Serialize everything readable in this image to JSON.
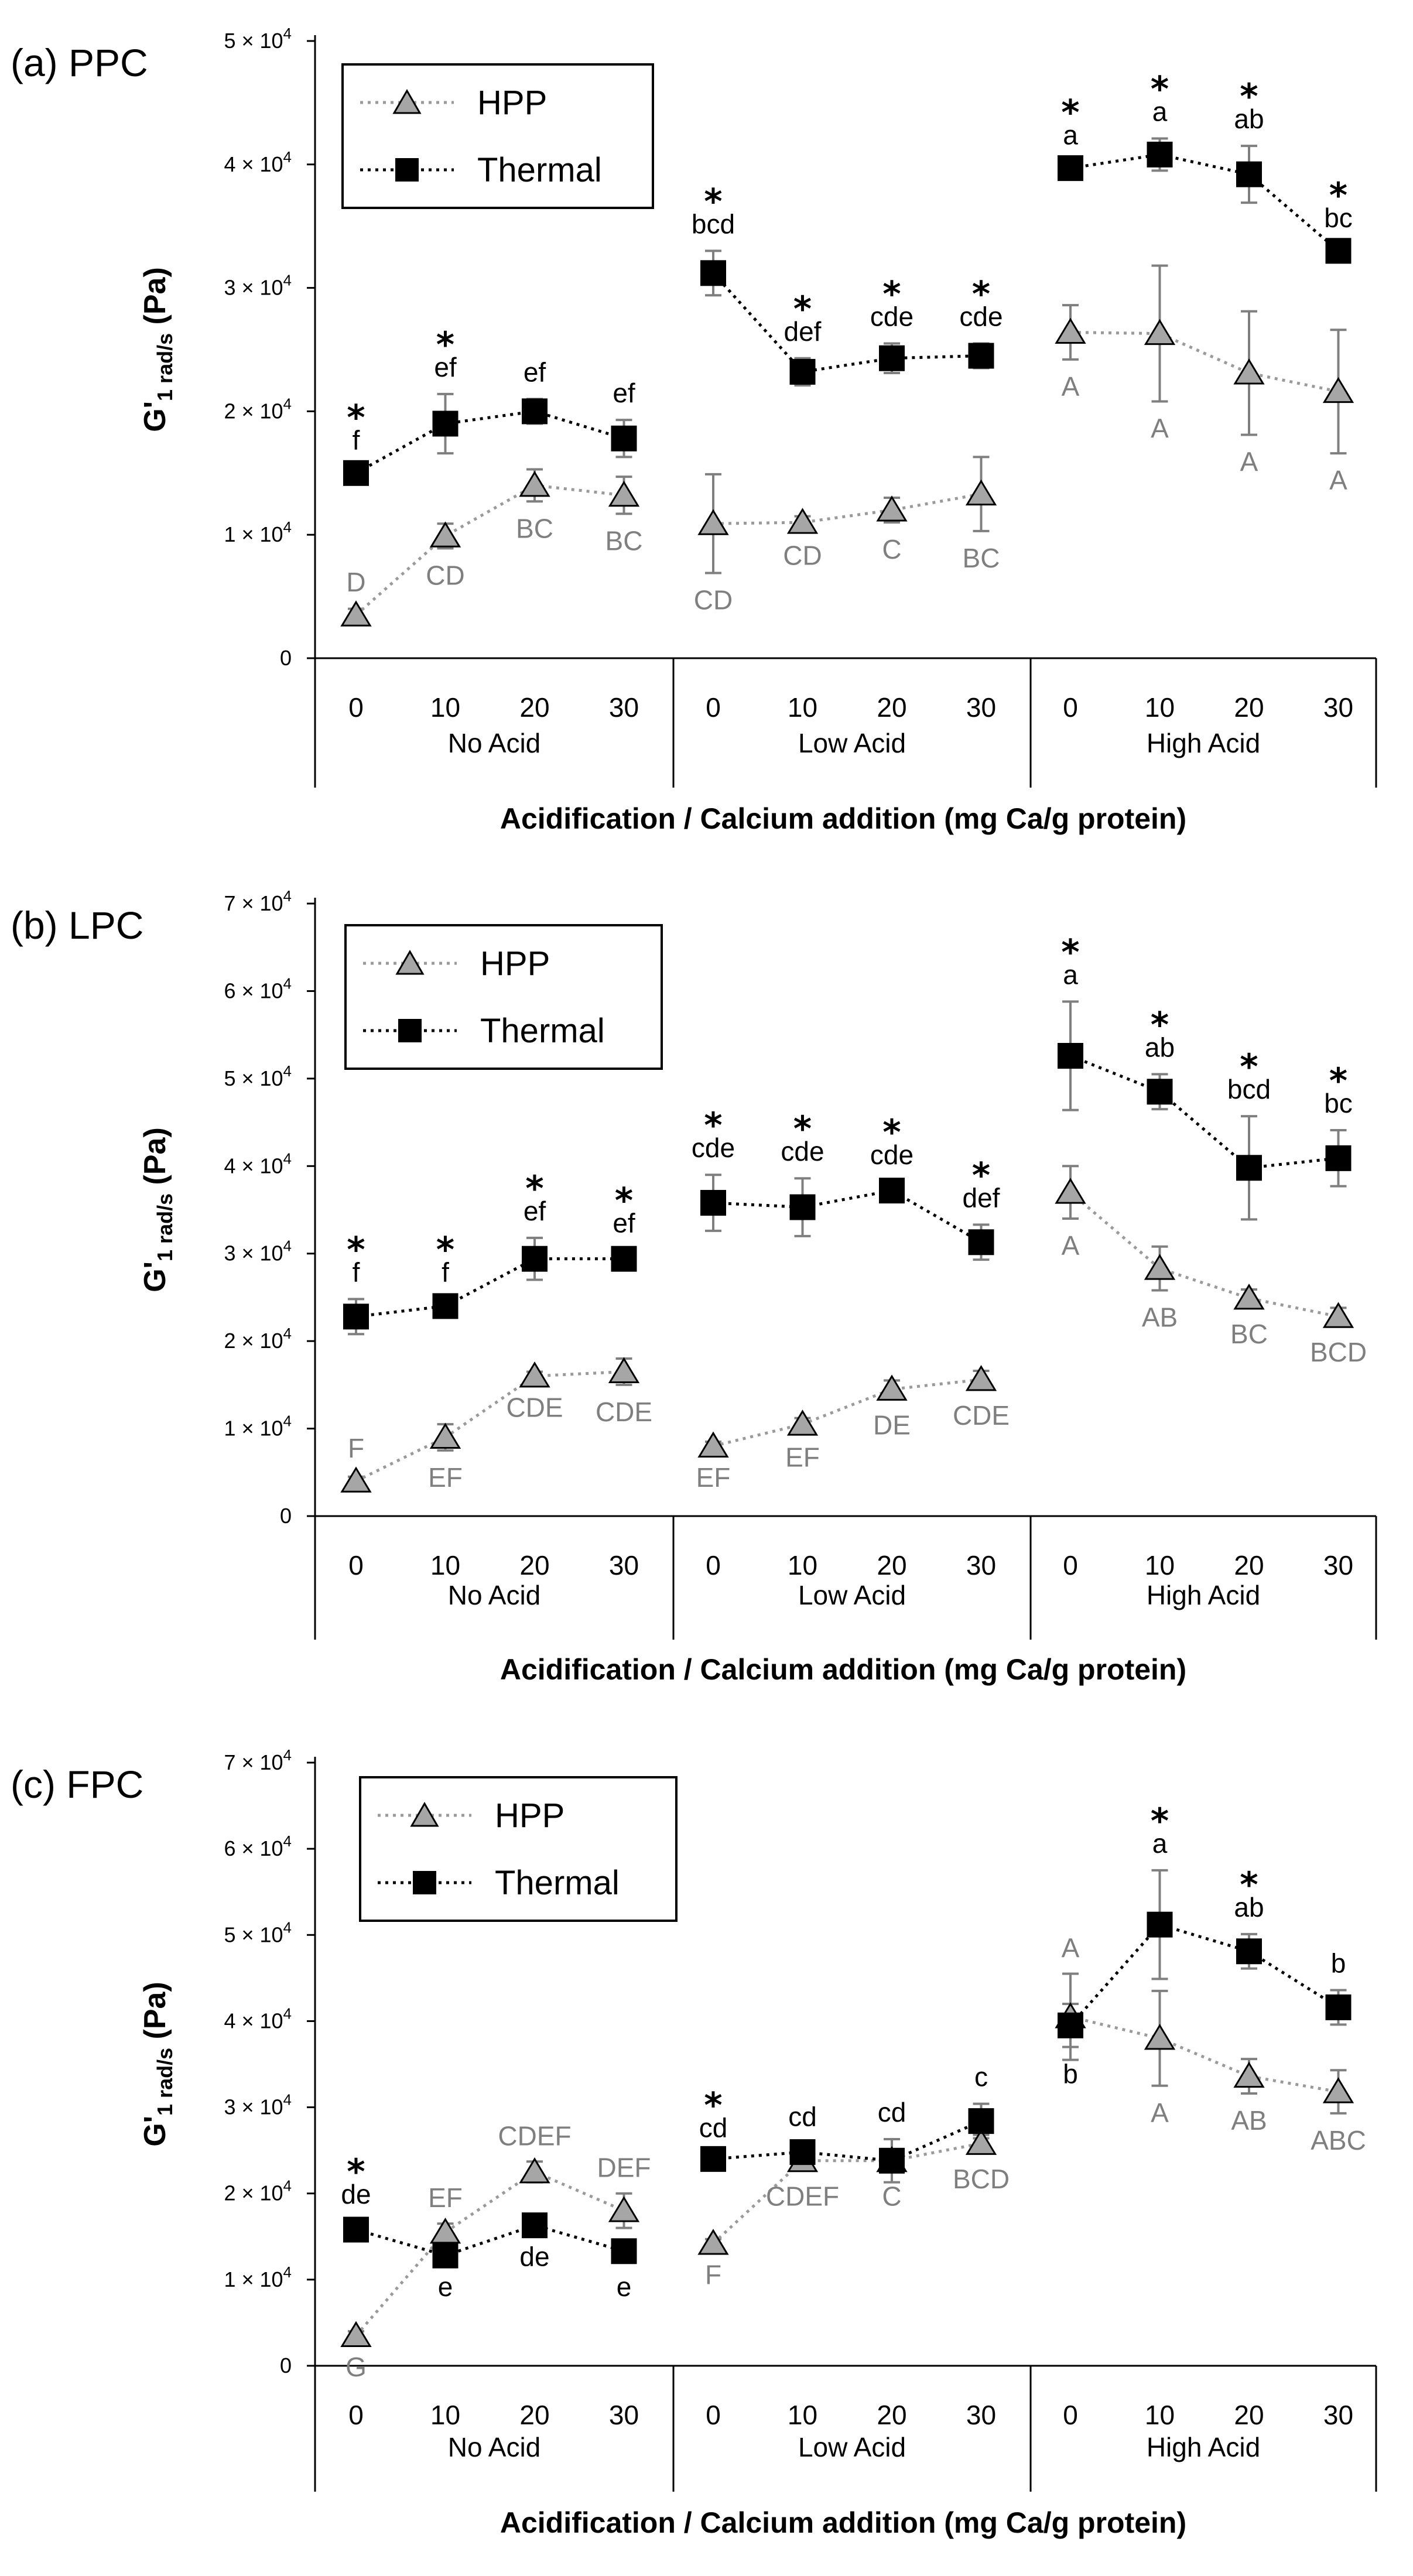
{
  "colors": {
    "thermal": "#000000",
    "hpp_fill": "#a6a6a6",
    "hpp_line": "#9a9a9a",
    "hpp_label": "#7f7f7f",
    "error_bar": "#7f7f7f",
    "axis": "#000000"
  },
  "figure": {
    "x_categories": [
      "0",
      "10",
      "20",
      "30",
      "0",
      "10",
      "20",
      "30",
      "0",
      "10",
      "20",
      "30"
    ],
    "groups": [
      "No Acid",
      "Low Acid",
      "High Acid"
    ],
    "xlabel": "Acidification / Calcium addition (mg Ca/g protein)",
    "ylabel_main": "G'",
    "ylabel_sub": "1 rad/s",
    "ylabel_unit": " (Pa)",
    "legend_hpp": "HPP",
    "legend_thermal": "Thermal",
    "star": "*"
  },
  "chart_data": [
    {
      "panel_label": "(a) PPC",
      "type": "line",
      "ylim": [
        0,
        50000
      ],
      "yticks": [
        {
          "mant": "0",
          "exp": ""
        },
        {
          "mant": "1 × 10",
          "exp": "4"
        },
        {
          "mant": "2 × 10",
          "exp": "4"
        },
        {
          "mant": "3 × 10",
          "exp": "4"
        },
        {
          "mant": "4 × 10",
          "exp": "4"
        },
        {
          "mant": "5 × 10",
          "exp": "4"
        }
      ],
      "series": [
        {
          "name": "HPP",
          "values": [
            3500,
            9900,
            14000,
            13200,
            10900,
            11000,
            12000,
            13300,
            26400,
            26300,
            23100,
            21600
          ],
          "errors": [
            500,
            1000,
            1300,
            1500,
            4000,
            500,
            1000,
            3000,
            2200,
            5500,
            5000,
            5000
          ],
          "labels": [
            "D",
            "CD",
            "BC",
            "BC",
            "CD",
            "CD",
            "C",
            "BC",
            "A",
            "A",
            "A",
            "A"
          ]
        },
        {
          "name": "Thermal",
          "values": [
            15000,
            19000,
            20000,
            17800,
            31200,
            23200,
            24300,
            24500,
            39700,
            40800,
            39200,
            33000
          ],
          "errors": [
            500,
            2400,
            1000,
            1500,
            1800,
            1100,
            1200,
            1000,
            500,
            1300,
            2300,
            500
          ],
          "labels": [
            "f",
            "ef",
            "ef",
            "ef",
            "bcd",
            "def",
            "cde",
            "cde",
            "a",
            "a",
            "ab",
            "bc"
          ],
          "stars": [
            true,
            true,
            false,
            false,
            true,
            true,
            true,
            true,
            true,
            true,
            true,
            true
          ]
        }
      ]
    },
    {
      "panel_label": "(b) LPC",
      "type": "line",
      "ylim": [
        0,
        70000
      ],
      "yticks": [
        {
          "mant": "0",
          "exp": ""
        },
        {
          "mant": "1 × 10",
          "exp": "4"
        },
        {
          "mant": "2 × 10",
          "exp": "4"
        },
        {
          "mant": "3 × 10",
          "exp": "4"
        },
        {
          "mant": "4 × 10",
          "exp": "4"
        },
        {
          "mant": "5 × 10",
          "exp": "4"
        },
        {
          "mant": "6 × 10",
          "exp": "4"
        },
        {
          "mant": "7 × 10",
          "exp": "4"
        }
      ],
      "series": [
        {
          "name": "HPP",
          "values": [
            4000,
            9000,
            16000,
            16500,
            8000,
            10500,
            14500,
            15600,
            37000,
            28300,
            24900,
            22800
          ],
          "errors": [
            500,
            1500,
            500,
            1500,
            500,
            700,
            1000,
            1000,
            3000,
            2500,
            1000,
            1000
          ],
          "labels": [
            "F",
            "EF",
            "CDE",
            "CDE",
            "EF",
            "EF",
            "DE",
            "CDE",
            "A",
            "AB",
            "BC",
            "BCD"
          ]
        },
        {
          "name": "Thermal",
          "values": [
            22800,
            24000,
            29400,
            29400,
            35800,
            35300,
            37200,
            31300,
            52600,
            48500,
            39800,
            40900
          ],
          "errors": [
            2000,
            800,
            2400,
            1000,
            3200,
            3300,
            1000,
            2000,
            6200,
            2000,
            5900,
            3200
          ],
          "labels": [
            "f",
            "f",
            "ef",
            "ef",
            "cde",
            "cde",
            "cde",
            "def",
            "a",
            "ab",
            "bcd",
            "bc"
          ],
          "stars": [
            true,
            true,
            true,
            true,
            true,
            true,
            true,
            true,
            true,
            true,
            true,
            true
          ]
        }
      ]
    },
    {
      "panel_label": "(c) FPC",
      "type": "line",
      "ylim": [
        0,
        70000
      ],
      "yticks": [
        {
          "mant": "0",
          "exp": ""
        },
        {
          "mant": "1 × 10",
          "exp": "4"
        },
        {
          "mant": "2 × 10",
          "exp": "4"
        },
        {
          "mant": "3 × 10",
          "exp": "4"
        },
        {
          "mant": "4 × 10",
          "exp": "4"
        },
        {
          "mant": "5 × 10",
          "exp": "4"
        },
        {
          "mant": "6 × 10",
          "exp": "4"
        },
        {
          "mant": "7 × 10",
          "exp": "4"
        }
      ],
      "series": [
        {
          "name": "HPP",
          "values": [
            3500,
            15500,
            22500,
            18000,
            14200,
            23800,
            23800,
            25800,
            40500,
            38000,
            33600,
            31800
          ],
          "errors": [
            500,
            1000,
            1200,
            2000,
            500,
            1000,
            1000,
            1000,
            5000,
            5500,
            2000,
            2500
          ],
          "labels": [
            "G",
            "EF",
            "CDEF",
            "DEF",
            "F",
            "CDEF",
            "C",
            "BCD",
            "A",
            "A",
            "AB",
            "ABC"
          ],
          "label_pos": [
            "below",
            "above",
            "above",
            "above",
            "below",
            "below",
            "below",
            "below",
            "above",
            "below",
            "below",
            "below"
          ]
        },
        {
          "name": "Thermal",
          "values": [
            15800,
            12800,
            16300,
            13300,
            24000,
            24800,
            23800,
            28400,
            39500,
            51200,
            48100,
            41600
          ],
          "errors": [
            1000,
            500,
            500,
            1000,
            500,
            1000,
            2500,
            2000,
            2500,
            6300,
            2000,
            2000
          ],
          "labels": [
            "de",
            "e",
            "de",
            "e",
            "cd",
            "cd",
            "cd",
            "c",
            "b",
            "a",
            "ab",
            "b"
          ],
          "label_pos": [
            "above",
            "below",
            "below",
            "below",
            "above",
            "above",
            "above",
            "above",
            "below",
            "above",
            "above",
            "above"
          ],
          "stars": [
            true,
            false,
            false,
            false,
            true,
            false,
            false,
            false,
            false,
            true,
            true,
            false
          ]
        }
      ]
    }
  ]
}
